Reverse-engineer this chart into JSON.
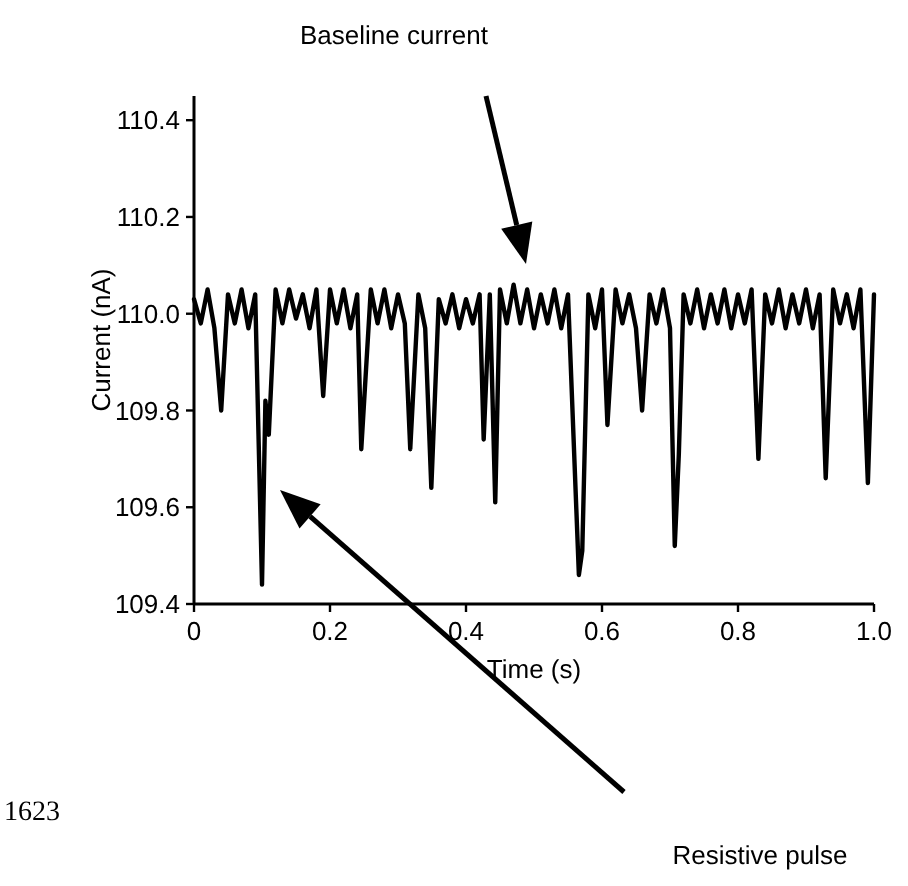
{
  "chart_data": {
    "type": "line",
    "xlabel": "Time (s)",
    "ylabel": "Current (nA)",
    "xlim": [
      0,
      1
    ],
    "xticks": [
      0,
      0.2,
      0.4,
      0.6,
      0.8,
      {
        "value": 1,
        "label": "1.0"
      }
    ],
    "ylim": [
      109.4,
      110.45
    ],
    "yticks": [
      109.4,
      109.6,
      109.8,
      {
        "value": 110,
        "label": "110.0"
      },
      110.2,
      110.4
    ],
    "grid": false,
    "marker": "none",
    "line_style": "solid",
    "annotations": [
      "Baseline current",
      "Resistive pulse",
      "1623"
    ],
    "series": [
      {
        "color": "#000000",
        "x": [
          0,
          0.01,
          0.02,
          0.03,
          0.04,
          0.05,
          0.06,
          0.07,
          0.08,
          0.09,
          0.1,
          0.105,
          0.11,
          0.12,
          0.13,
          0.14,
          0.15,
          0.16,
          0.17,
          0.18,
          0.19,
          0.2,
          0.21,
          0.22,
          0.23,
          0.24,
          0.246,
          0.26,
          0.27,
          0.28,
          0.29,
          0.3,
          0.31,
          0.318,
          0.33,
          0.34,
          0.349,
          0.36,
          0.37,
          0.38,
          0.39,
          0.4,
          0.41,
          0.42,
          0.426,
          0.435,
          0.443,
          0.45,
          0.46,
          0.47,
          0.48,
          0.49,
          0.5,
          0.51,
          0.52,
          0.53,
          0.54,
          0.55,
          0.566,
          0.571,
          0.58,
          0.59,
          0.6,
          0.608,
          0.62,
          0.63,
          0.64,
          0.65,
          0.659,
          0.67,
          0.68,
          0.69,
          0.7,
          0.707,
          0.713,
          0.72,
          0.73,
          0.74,
          0.75,
          0.76,
          0.77,
          0.78,
          0.79,
          0.8,
          0.81,
          0.82,
          0.83,
          0.84,
          0.85,
          0.86,
          0.87,
          0.88,
          0.89,
          0.9,
          0.91,
          0.92,
          0.929,
          0.94,
          0.95,
          0.96,
          0.97,
          0.98,
          0.991,
          1
        ],
        "values": [
          110.03,
          109.98,
          110.05,
          109.97,
          109.8,
          110.04,
          109.98,
          110.05,
          109.97,
          110.04,
          109.44,
          109.82,
          109.75,
          110.05,
          109.98,
          110.05,
          109.99,
          110.04,
          109.97,
          110.05,
          109.83,
          110.05,
          109.98,
          110.05,
          109.97,
          110.04,
          109.72,
          110.05,
          109.98,
          110.05,
          109.97,
          110.04,
          109.98,
          109.72,
          110.04,
          109.97,
          109.64,
          110.03,
          109.98,
          110.04,
          109.97,
          110.03,
          109.98,
          110.04,
          109.74,
          110.04,
          109.61,
          110.05,
          109.98,
          110.06,
          109.98,
          110.05,
          109.97,
          110.04,
          109.98,
          110.05,
          109.97,
          110.04,
          109.46,
          109.51,
          110.04,
          109.97,
          110.05,
          109.77,
          110.05,
          109.98,
          110.04,
          109.97,
          109.8,
          110.04,
          109.98,
          110.05,
          109.97,
          109.52,
          109.71,
          110.04,
          109.98,
          110.05,
          109.97,
          110.04,
          109.98,
          110.05,
          109.97,
          110.04,
          109.98,
          110.05,
          109.7,
          110.04,
          109.98,
          110.05,
          109.97,
          110.04,
          109.98,
          110.05,
          109.97,
          110.04,
          109.66,
          110.05,
          109.98,
          110.04,
          109.97,
          110.05,
          109.65,
          110.04
        ]
      }
    ]
  }
}
